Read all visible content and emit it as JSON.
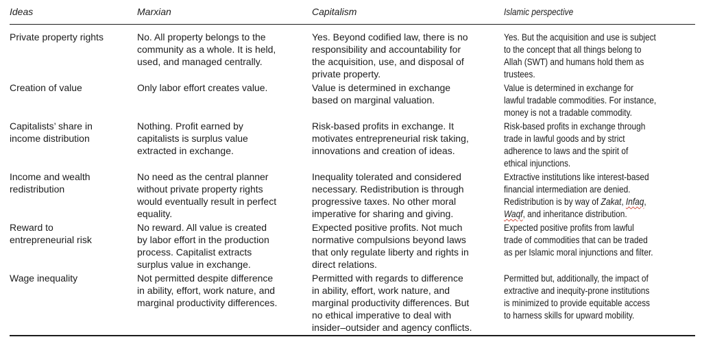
{
  "colors": {
    "text": "#1b1b1b",
    "rules": "#1b1b1b",
    "spellcheck_underline": "#d04a3a"
  },
  "table": {
    "headers": [
      {
        "id": "ideas",
        "label": "Ideas"
      },
      {
        "id": "marxian",
        "label": "Marxian"
      },
      {
        "id": "capitalism",
        "label": "Capitalism"
      },
      {
        "id": "islamic",
        "label": "Islamic perspective"
      }
    ],
    "rows": [
      {
        "idea": "Private property rights",
        "marxian": "No. All property belongs to the\ncommunity as a whole. It is held,\nused, and managed centrally.",
        "capitalism": "Yes. Beyond codified law, there is no\nresponsibility and accountability for\nthe acquisition, use, and disposal of\nprivate property.",
        "islamic": "Yes. But the acquisition and use is subject\nto the concept that all things belong to\nAllah (SWT) and humans hold them as\ntrustees."
      },
      {
        "idea": "Creation of value",
        "marxian": "Only labor effort creates value.",
        "capitalism": "Value is determined in exchange\nbased on marginal valuation.",
        "islamic": "Value is determined in exchange for\nlawful tradable commodities. For instance,\nmoney is not a tradable commodity."
      },
      {
        "idea": "Capitalists’ share in\nincome distribution",
        "marxian": "Nothing. Profit earned by\ncapitalists is surplus value\nextracted in exchange.",
        "capitalism": "Risk-based profits in exchange. It\nmotivates entrepreneurial risk taking,\ninnovations and creation of ideas.",
        "islamic": "Risk-based profits in exchange through\ntrade in lawful goods and by strict\nadherence to laws and the spirit of\nethical injunctions."
      },
      {
        "idea": "Income and wealth\nredistribution",
        "marxian": "No need as the central planner\nwithout private property rights\nwould eventually result in perfect\nequality.",
        "capitalism": "Inequality tolerated and considered\nnecessary. Redistribution is through\nprogressive taxes. No other moral\nimperative for sharing and giving.",
        "islamic_segments": [
          {
            "t": "Extractive institutions like interest-based\nfinancial intermediation are denied.\nRedistribution is by way of ",
            "n": "text-segment"
          },
          {
            "t": "Zakat",
            "style": "italic",
            "n": "term-zakat"
          },
          {
            "t": ", ",
            "n": "text-segment"
          },
          {
            "t": "Infaq",
            "style": "italic misspelled",
            "n": "term-infaq"
          },
          {
            "t": ",\n",
            "n": "text-segment"
          },
          {
            "t": "Waqf",
            "style": "italic misspelled",
            "n": "term-waqf"
          },
          {
            "t": ", and inheritance distribution.",
            "n": "text-segment"
          }
        ]
      },
      {
        "idea": "Reward to\nentrepreneurial risk",
        "marxian": "No reward. All value is created\nby labor effort in the production\nprocess. Capitalist extracts\nsurplus value in exchange.",
        "capitalism": "Expected positive profits. Not much\nnormative compulsions beyond laws\nthat only regulate liberty and rights in\ndirect relations.",
        "islamic": "Expected positive profits from lawful\ntrade of commodities that can be traded\nas per Islamic moral injunctions and filter."
      },
      {
        "idea": "Wage inequality",
        "marxian": "Not permitted despite difference\nin ability, effort, work nature, and\nmarginal productivity differences.",
        "capitalism": "Permitted with regards to difference\nin ability, effort, work nature, and\nmarginal productivity differences. But\nno ethical imperative to deal with\ninsider–outsider and agency conflicts.",
        "islamic": "Permitted but, additionally, the impact of\nextractive and inequity-prone institutions\nis minimized to provide equitable access\nto harness skills for upward mobility."
      }
    ]
  }
}
